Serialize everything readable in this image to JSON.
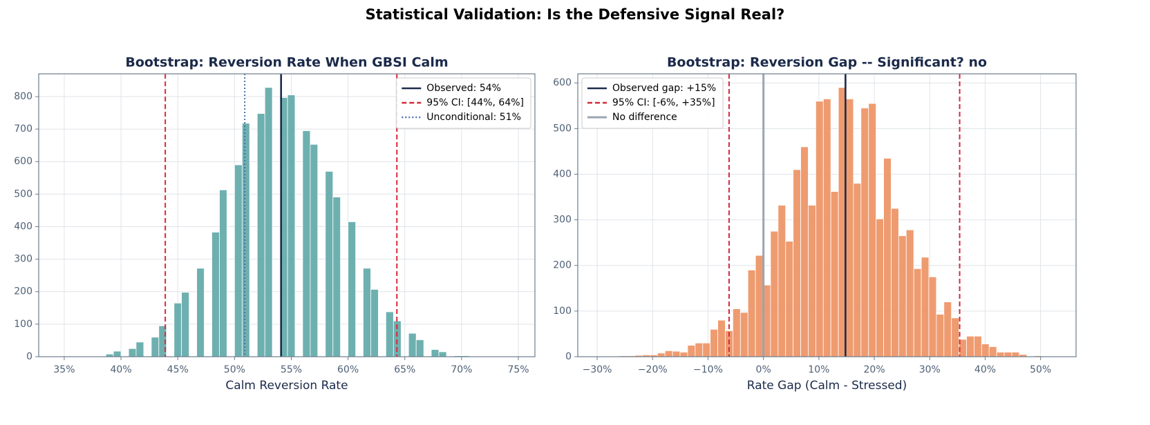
{
  "title": "Statistical Validation: Is the Defensive Signal Real?",
  "chart_data": [
    {
      "type": "histogram",
      "title": "Bootstrap: Reversion Rate When GBSI Calm",
      "xlabel": "Calm Reversion Rate",
      "color": "#62a9a9",
      "grid": true,
      "legend": "upper right",
      "bins": [
        36.67,
        37.33,
        38,
        38.67,
        39.33,
        40,
        40.67,
        41.33,
        42,
        42.67,
        43.33,
        44,
        44.67,
        45.33,
        46,
        46.67,
        47.33,
        48,
        48.67,
        49.33,
        50,
        50.67,
        51.33,
        52,
        52.67,
        53.33,
        54,
        54.67,
        55.33,
        56,
        56.67,
        57.33,
        58,
        58.67,
        59.33,
        60,
        60.67,
        61.33,
        62,
        62.67,
        63.33,
        64,
        64.67,
        65.33,
        66,
        66.67,
        67.33,
        68,
        68.67,
        69.33,
        70,
        70.67,
        71.33,
        72,
        72.67
      ],
      "counts": [
        1,
        1,
        0,
        8,
        17,
        0,
        25,
        45,
        0,
        60,
        95,
        0,
        165,
        198,
        0,
        272,
        0,
        383,
        513,
        0,
        590,
        718,
        0,
        748,
        828,
        0,
        797,
        805,
        0,
        695,
        653,
        0,
        570,
        491,
        0,
        415,
        0,
        272,
        207,
        0,
        138,
        110,
        0,
        72,
        52,
        0,
        22,
        15,
        0,
        3,
        3,
        0,
        1,
        0
      ],
      "xlim": [
        32.75,
        76.46
      ],
      "ylim": [
        0,
        870
      ],
      "xticks": [
        {
          "value": 35,
          "label": "35%"
        },
        {
          "value": 40,
          "label": "40%"
        },
        {
          "value": 45,
          "label": "45%"
        },
        {
          "value": 50,
          "label": "50%"
        },
        {
          "value": 55,
          "label": "55%"
        },
        {
          "value": 60,
          "label": "60%"
        },
        {
          "value": 65,
          "label": "65%"
        },
        {
          "value": 70,
          "label": "70%"
        },
        {
          "value": 75,
          "label": "75%"
        }
      ],
      "yticks": [
        0,
        100,
        200,
        300,
        400,
        500,
        600,
        700,
        800
      ],
      "lines": [
        {
          "name": "Observed: 54%",
          "values": [
            54.1
          ],
          "color": "#1b2a4a",
          "style": "solid"
        },
        {
          "name": "95% CI: [44%, 64%]",
          "values": [
            43.9,
            64.3
          ],
          "color": "#d62839",
          "style": "dashed"
        },
        {
          "name": "Unconditional: 51%",
          "values": [
            50.9
          ],
          "color": "#4a6fa5",
          "style": "dotted"
        }
      ]
    },
    {
      "type": "histogram",
      "title": "Bootstrap: Reversion Gap -- Significant? no",
      "xlabel": "Rate Gap (Calm - Stressed)",
      "color": "#ee9264",
      "grid": true,
      "legend": "upper left",
      "bins": [
        -30,
        -28.64,
        -27.28,
        -25.92,
        -24.56,
        -23.2,
        -21.84,
        -20.48,
        -19.12,
        -17.76,
        -16.4,
        -15.04,
        -13.68,
        -12.32,
        -10.96,
        -9.6,
        -8.24,
        -6.88,
        -5.52,
        -4.16,
        -2.8,
        -1.44,
        -0.08,
        1.28,
        2.64,
        4,
        5.36,
        6.72,
        8.08,
        9.44,
        10.8,
        12.16,
        13.52,
        14.88,
        16.24,
        17.6,
        18.96,
        20.32,
        21.68,
        23.04,
        24.4,
        25.76,
        27.12,
        28.48,
        29.84,
        31.2,
        32.56,
        33.92,
        35.28,
        36.64,
        38,
        39.36,
        40.72,
        42.08,
        43.44,
        44.8,
        46.16,
        47.52,
        48.88,
        50.24,
        51.6
      ],
      "counts": [
        1,
        0,
        1,
        2,
        2,
        3,
        4,
        4,
        8,
        13,
        12,
        10,
        25,
        30,
        30,
        60,
        80,
        57,
        105,
        97,
        190,
        222,
        157,
        275,
        332,
        253,
        410,
        460,
        332,
        560,
        565,
        362,
        590,
        565,
        380,
        545,
        555,
        302,
        435,
        325,
        265,
        278,
        193,
        218,
        175,
        93,
        120,
        85,
        38,
        45,
        45,
        28,
        22,
        10,
        10,
        10,
        5,
        1,
        2,
        1
      ],
      "xlim": [
        -33.5,
        56.4
      ],
      "ylim": [
        0,
        620
      ],
      "xticks": [
        {
          "value": -30,
          "label": "−30%"
        },
        {
          "value": -20,
          "label": "−20%"
        },
        {
          "value": -10,
          "label": "−10%"
        },
        {
          "value": 0,
          "label": "0%"
        },
        {
          "value": 10,
          "label": "10%"
        },
        {
          "value": 20,
          "label": "20%"
        },
        {
          "value": 30,
          "label": "30%"
        },
        {
          "value": 40,
          "label": "40%"
        },
        {
          "value": 50,
          "label": "50%"
        }
      ],
      "yticks": [
        0,
        100,
        200,
        300,
        400,
        500,
        600
      ],
      "lines": [
        {
          "name": "Observed gap: +15%",
          "values": [
            14.8
          ],
          "color": "#1b2a4a",
          "style": "solid"
        },
        {
          "name": "95% CI: [-6%, +35%]",
          "values": [
            -6.2,
            35.4
          ],
          "color": "#d62839",
          "style": "dashed"
        },
        {
          "name": "No difference",
          "values": [
            0
          ],
          "color": "#9aa5b1",
          "style": "thick"
        }
      ]
    }
  ]
}
